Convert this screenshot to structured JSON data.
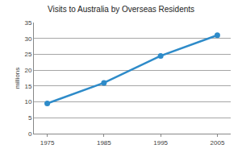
{
  "chart_data": {
    "type": "line",
    "title": "Visits to Australia by Overseas Residents",
    "y_label": "millions",
    "categories": [
      "1975",
      "1985",
      "1995",
      "2005"
    ],
    "values": [
      9.5,
      16,
      24.5,
      31
    ],
    "color": "#2e8bc9",
    "marker": "circle",
    "line_style": "solid",
    "ylim": [
      0,
      35
    ],
    "yticks": [
      0,
      5,
      10,
      15,
      20,
      25,
      30,
      35
    ],
    "grid": true
  }
}
